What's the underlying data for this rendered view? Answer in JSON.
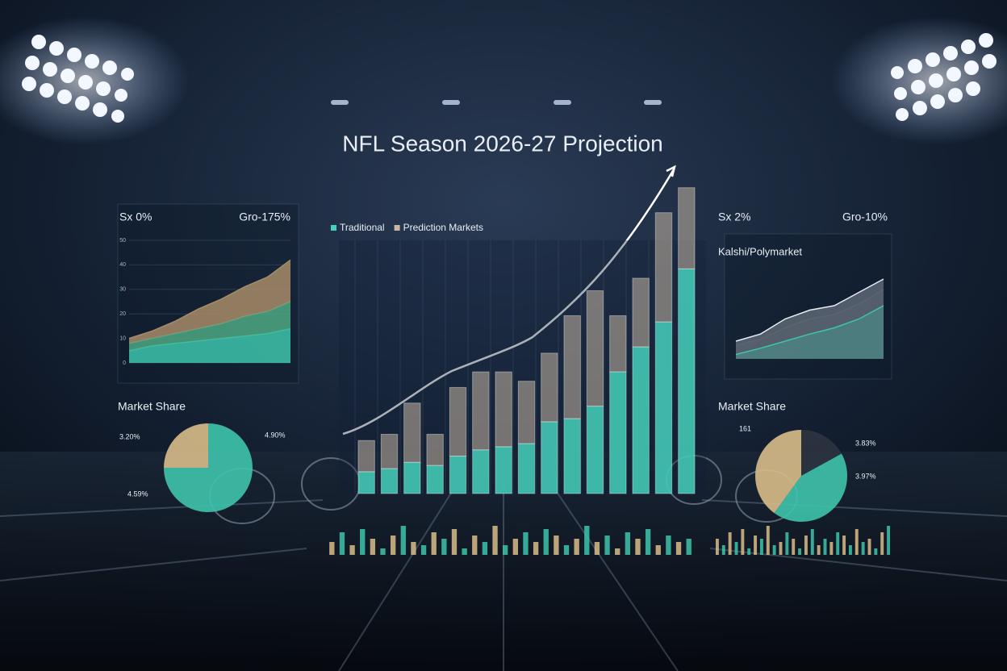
{
  "chart_data": [
    {
      "type": "area",
      "stats": [
        "Sx 0%",
        "Gro-175%"
      ],
      "ylim": [
        0,
        50
      ],
      "yticks": [
        0,
        10,
        20,
        30,
        40,
        50
      ],
      "series": [
        {
          "color": "#3ec4ac",
          "values": [
            5,
            7,
            8,
            9,
            10,
            11,
            12,
            14
          ]
        },
        {
          "color": "#4fa884",
          "values": [
            3,
            3,
            4,
            5,
            6,
            8,
            9,
            11
          ]
        },
        {
          "color": "#a88c68",
          "values": [
            2,
            3,
            5,
            8,
            10,
            12,
            14,
            17
          ]
        }
      ]
    },
    {
      "type": "stacked-bar",
      "title": "NFL Season 2026-27 Projection",
      "ylim": [
        0,
        100
      ],
      "series": [
        {
          "name": "Traditional",
          "color": "#45d1bd",
          "values": [
            7,
            8,
            10,
            9,
            12,
            14,
            15,
            16,
            23,
            24,
            28,
            39,
            47,
            55,
            72
          ]
        },
        {
          "name": "Prediction Markets",
          "color": "#c9b7a4",
          "values": [
            10,
            11,
            19,
            10,
            22,
            25,
            24,
            20,
            22,
            33,
            37,
            18,
            22,
            35,
            26
          ]
        }
      ]
    },
    {
      "type": "area",
      "stats": [
        "Sx 2%",
        "Gro-10%"
      ],
      "title": "Kalshi/Polymarket",
      "ylim": [
        0,
        100
      ],
      "series": [
        {
          "color": "#e6ecf2",
          "values": [
            20,
            28,
            45,
            55,
            60,
            75,
            90
          ]
        },
        {
          "color": "#5c6470",
          "values": [
            15,
            22,
            35,
            45,
            50,
            62,
            78
          ]
        },
        {
          "color": "#3ec4ac",
          "values": [
            5,
            12,
            20,
            28,
            35,
            45,
            60
          ]
        }
      ]
    },
    {
      "type": "pie",
      "title": "Market Share",
      "annotations": [
        "3.20%",
        "4.90%",
        "4.59%"
      ],
      "colors": [
        "#3ec4ac",
        "#d9bd8a"
      ],
      "values": [
        75,
        25
      ]
    },
    {
      "type": "pie",
      "title": "Market Share",
      "annotations": [
        "161",
        "3.83%",
        "3.97%"
      ],
      "colors": [
        "#2e3440",
        "#3ec4ac",
        "#d9bd8a"
      ],
      "values": [
        17,
        43,
        40
      ]
    },
    {
      "type": "bar",
      "ylim": [
        0,
        10
      ],
      "colors": [
        "#d9bd8a",
        "#3ec4ac"
      ],
      "values": [
        4,
        7,
        3,
        8,
        5,
        2,
        6,
        9,
        4,
        3,
        7,
        5,
        8,
        2,
        6,
        4,
        9,
        3,
        5,
        7,
        4,
        8,
        6,
        3,
        5,
        9,
        4,
        6,
        2,
        7,
        5,
        8,
        3,
        6,
        4,
        5
      ]
    },
    {
      "type": "bar",
      "ylim": [
        0,
        10
      ],
      "colors": [
        "#d9bd8a",
        "#3ec4ac"
      ],
      "values": [
        5,
        3,
        7,
        4,
        8,
        2,
        6,
        5,
        9,
        3,
        4,
        7,
        5,
        2,
        6,
        8,
        3,
        5,
        4,
        7,
        6,
        3,
        8,
        4,
        5,
        2,
        7,
        9
      ]
    }
  ]
}
